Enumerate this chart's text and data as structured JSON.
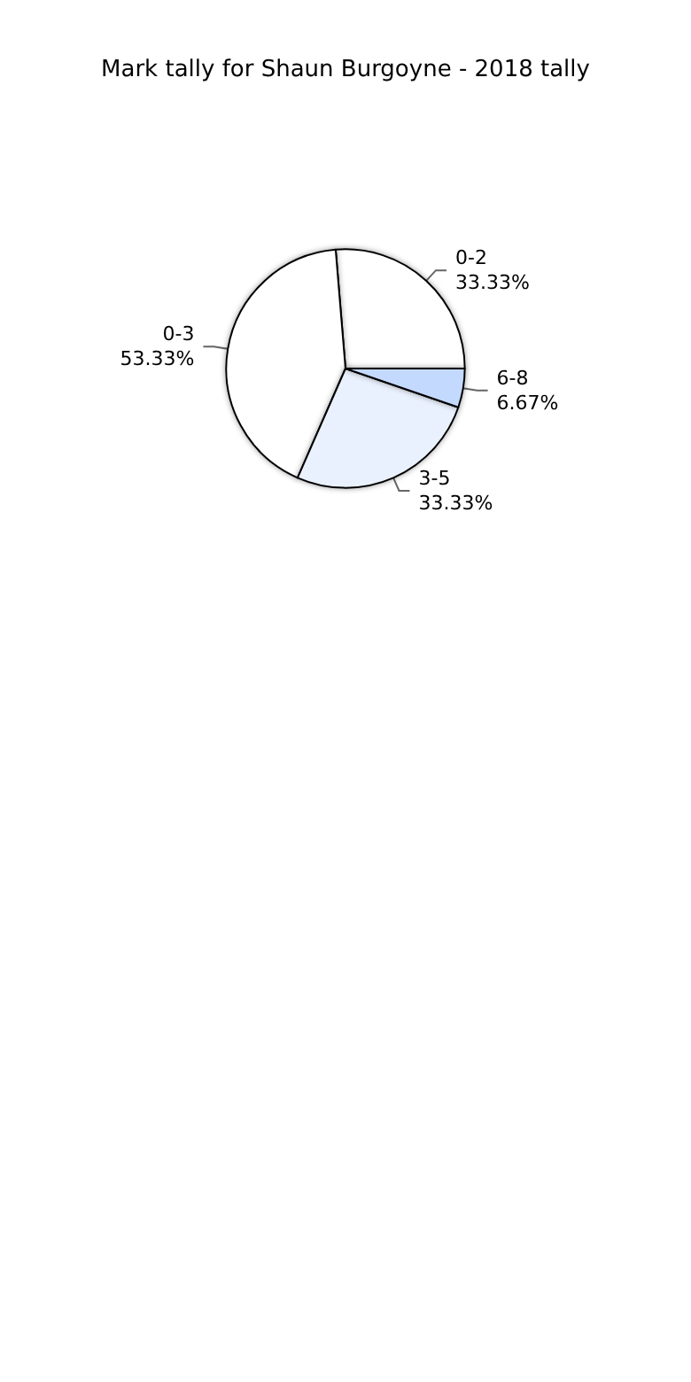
{
  "chart_data": {
    "type": "pie",
    "title": "Mark tally for Shaun Burgoyne - 2018 tally",
    "categories": [
      "0-2",
      "0-3",
      "3-5",
      "6-8"
    ],
    "values": [
      33.33,
      53.33,
      33.33,
      6.67
    ],
    "value_labels": [
      "33.33%",
      "53.33%",
      "33.33%",
      "6.67%"
    ],
    "colors": [
      "#ffffff",
      "#ffffff",
      "#eaf1fe",
      "#c4d9fe"
    ],
    "legend": false
  }
}
